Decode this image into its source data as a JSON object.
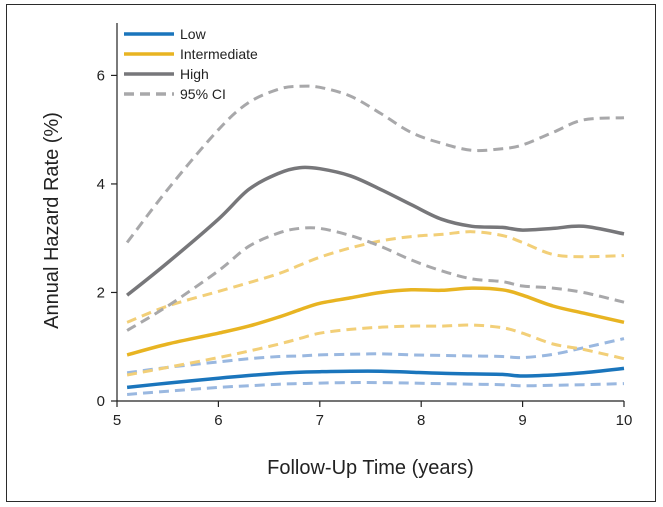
{
  "chart_data": {
    "type": "line",
    "title": "",
    "xlabel": "Follow-Up Time (years)",
    "ylabel": "Annual Hazard Rate (%)",
    "xlim": [
      5,
      10
    ],
    "ylim": [
      0,
      6.8
    ],
    "xticks": [
      5,
      6,
      7,
      8,
      9,
      10
    ],
    "yticks": [
      0,
      2,
      4,
      6
    ],
    "grid": false,
    "legend_position": "top-left",
    "legend": [
      {
        "label": "Low",
        "color": "#1a75bc",
        "style": "solid"
      },
      {
        "label": "Intermediate",
        "color": "#e8b422",
        "style": "solid"
      },
      {
        "label": "High",
        "color": "#77777a",
        "style": "solid"
      },
      {
        "label": "95% CI",
        "color": "#a8a8aa",
        "style": "dashed"
      }
    ],
    "x": [
      5.1,
      5.5,
      6.0,
      6.3,
      6.6,
      6.8,
      7.0,
      7.3,
      7.6,
      7.9,
      8.2,
      8.5,
      8.8,
      9.0,
      9.3,
      9.6,
      10.0
    ],
    "series": [
      {
        "name": "Low",
        "kind": "estimate",
        "color": "#1a75bc",
        "dashed": false,
        "values": [
          0.25,
          0.33,
          0.42,
          0.47,
          0.51,
          0.53,
          0.54,
          0.55,
          0.55,
          0.53,
          0.51,
          0.5,
          0.49,
          0.46,
          0.48,
          0.52,
          0.6
        ]
      },
      {
        "name": "Low",
        "kind": "ci-upper",
        "color": "#9ab8e0",
        "dashed": true,
        "values": [
          0.52,
          0.62,
          0.72,
          0.78,
          0.82,
          0.83,
          0.85,
          0.86,
          0.87,
          0.85,
          0.84,
          0.83,
          0.82,
          0.8,
          0.86,
          0.98,
          1.15
        ]
      },
      {
        "name": "Low",
        "kind": "ci-lower",
        "color": "#9ab8e0",
        "dashed": true,
        "values": [
          0.12,
          0.18,
          0.25,
          0.28,
          0.31,
          0.32,
          0.33,
          0.34,
          0.34,
          0.33,
          0.32,
          0.31,
          0.3,
          0.28,
          0.29,
          0.3,
          0.32
        ]
      },
      {
        "name": "Intermediate",
        "kind": "estimate",
        "color": "#e8b422",
        "dashed": false,
        "values": [
          0.85,
          1.05,
          1.25,
          1.38,
          1.55,
          1.68,
          1.8,
          1.9,
          2.0,
          2.05,
          2.04,
          2.08,
          2.05,
          1.95,
          1.75,
          1.62,
          1.45
        ]
      },
      {
        "name": "Intermediate",
        "kind": "ci-upper",
        "color": "#f2cf78",
        "dashed": true,
        "values": [
          1.45,
          1.75,
          2.02,
          2.18,
          2.35,
          2.5,
          2.65,
          2.82,
          2.95,
          3.03,
          3.07,
          3.12,
          3.05,
          2.92,
          2.7,
          2.66,
          2.68
        ]
      },
      {
        "name": "Intermediate",
        "kind": "ci-lower",
        "color": "#f2cf78",
        "dashed": true,
        "values": [
          0.48,
          0.62,
          0.8,
          0.92,
          1.05,
          1.15,
          1.25,
          1.32,
          1.36,
          1.38,
          1.38,
          1.4,
          1.35,
          1.25,
          1.05,
          0.95,
          0.78
        ]
      },
      {
        "name": "High",
        "kind": "estimate",
        "color": "#77777a",
        "dashed": false,
        "values": [
          1.95,
          2.55,
          3.35,
          3.9,
          4.2,
          4.3,
          4.28,
          4.15,
          3.9,
          3.62,
          3.35,
          3.22,
          3.2,
          3.15,
          3.18,
          3.22,
          3.08
        ]
      },
      {
        "name": "High",
        "kind": "ci-upper",
        "color": "#a8a8aa",
        "dashed": true,
        "values": [
          2.92,
          3.9,
          5.0,
          5.5,
          5.75,
          5.8,
          5.78,
          5.62,
          5.3,
          4.95,
          4.75,
          4.62,
          4.65,
          4.72,
          4.95,
          5.18,
          5.22
        ]
      },
      {
        "name": "High",
        "kind": "ci-lower",
        "color": "#a8a8aa",
        "dashed": true,
        "values": [
          1.3,
          1.75,
          2.4,
          2.85,
          3.1,
          3.18,
          3.18,
          3.05,
          2.85,
          2.6,
          2.4,
          2.25,
          2.2,
          2.12,
          2.08,
          2.0,
          1.82
        ]
      }
    ]
  }
}
